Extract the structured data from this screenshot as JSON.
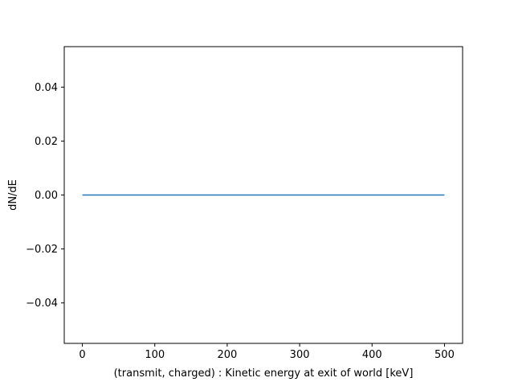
{
  "chart_data": {
    "type": "line",
    "title": "",
    "xlabel": "(transmit, charged) : Kinetic energy at exit of world [keV]",
    "ylabel": "dN/dE",
    "xlim": [
      -25,
      525
    ],
    "ylim": [
      -0.055,
      0.055
    ],
    "x_ticks": [
      0,
      100,
      200,
      300,
      400,
      500
    ],
    "x_tick_labels": [
      "0",
      "100",
      "200",
      "300",
      "400",
      "500"
    ],
    "y_ticks": [
      -0.04,
      -0.02,
      0.0,
      0.02,
      0.04
    ],
    "y_tick_labels": [
      "−0.04",
      "−0.02",
      "0.00",
      "0.02",
      "0.04"
    ],
    "grid": false,
    "legend": "none",
    "series": [
      {
        "color": "#1f77b4",
        "x": [
          0,
          500
        ],
        "y": [
          0,
          0
        ]
      }
    ]
  }
}
